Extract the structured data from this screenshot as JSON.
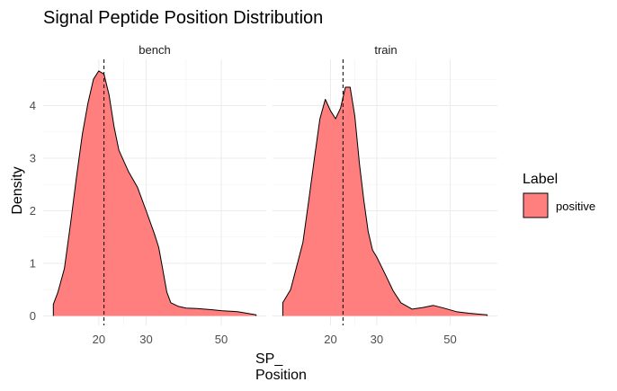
{
  "chart_data": {
    "type": "area",
    "title": "Signal Peptide Position Distribution",
    "xlabel": [
      "SP_",
      "Position"
    ],
    "ylabel": "Density",
    "x_ticks": [
      20,
      30,
      50
    ],
    "y_ticks": [
      0,
      1,
      2,
      3,
      4
    ],
    "ylim": [
      0,
      4.8
    ],
    "grid": true,
    "x_scale": "sqrt",
    "legend": {
      "title": "Label",
      "position": "right",
      "entries": [
        {
          "label": "positive",
          "color": "#FF7F7F"
        }
      ]
    },
    "fill_color": "#FF7F7F",
    "facets": [
      {
        "name": "bench",
        "xlim": [
          12.3,
          61.0
        ],
        "median": 21.0,
        "x": [
          12.3,
          13.0,
          14.0,
          15.0,
          16.0,
          17.0,
          18.0,
          19.0,
          20.0,
          21.0,
          22.0,
          23.0,
          24.0,
          26.0,
          28.0,
          30.0,
          32.0,
          33.0,
          34.0,
          35.0,
          36.0,
          38.0,
          40.0,
          43.0,
          47.0,
          50.0,
          55.0,
          58.0,
          61.0
        ],
        "y": [
          0.22,
          0.45,
          0.9,
          1.75,
          2.65,
          3.45,
          4.05,
          4.5,
          4.66,
          4.6,
          4.2,
          3.6,
          3.15,
          2.75,
          2.45,
          2.0,
          1.55,
          1.3,
          0.88,
          0.45,
          0.25,
          0.18,
          0.15,
          0.14,
          0.12,
          0.1,
          0.08,
          0.05,
          0.02
        ]
      },
      {
        "name": "train",
        "xlim": [
          11.8,
          62.0
        ],
        "median": 22.5,
        "x": [
          11.8,
          13.0,
          15.0,
          16.0,
          17.0,
          18.0,
          19.0,
          20.0,
          21.0,
          22.0,
          23.0,
          24.0,
          25.0,
          26.0,
          27.0,
          28.0,
          29.0,
          30.0,
          32.0,
          34.0,
          36.0,
          39.0,
          42.0,
          45.0,
          48.0,
          52.0,
          56.0,
          60.0,
          62.0
        ],
        "y": [
          0.25,
          0.5,
          1.4,
          2.2,
          3.0,
          3.75,
          4.12,
          3.9,
          3.75,
          3.95,
          4.35,
          4.35,
          3.8,
          2.9,
          2.2,
          1.6,
          1.25,
          1.12,
          0.8,
          0.48,
          0.25,
          0.13,
          0.16,
          0.2,
          0.15,
          0.08,
          0.05,
          0.03,
          0.02
        ]
      }
    ]
  }
}
